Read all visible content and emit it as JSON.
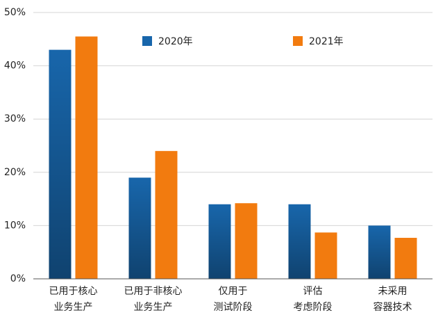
{
  "chart_data": {
    "type": "bar",
    "categories": [
      [
        "已用于核心",
        "业务生产"
      ],
      [
        "已用于非核心",
        "业务生产"
      ],
      [
        "仅用于",
        "测试阶段"
      ],
      [
        "评估",
        "考虑阶段"
      ],
      [
        "未采用",
        "容器技术"
      ]
    ],
    "series": [
      {
        "name": "2020年",
        "color": "#1866ab",
        "values": [
          43,
          19,
          14,
          14,
          10
        ]
      },
      {
        "name": "2021年",
        "color": "#f27b0f",
        "values": [
          45.5,
          24,
          14.2,
          8.7,
          7.7
        ]
      }
    ],
    "ylim": [
      0,
      50
    ],
    "yticks": [
      {
        "value": 0,
        "label": "0%"
      },
      {
        "value": 10,
        "label": "10%"
      },
      {
        "value": 20,
        "label": "20%"
      },
      {
        "value": 30,
        "label": "30%"
      },
      {
        "value": 40,
        "label": "40%"
      },
      {
        "value": 50,
        "label": "50%"
      }
    ],
    "grid": true,
    "legend": "top"
  }
}
